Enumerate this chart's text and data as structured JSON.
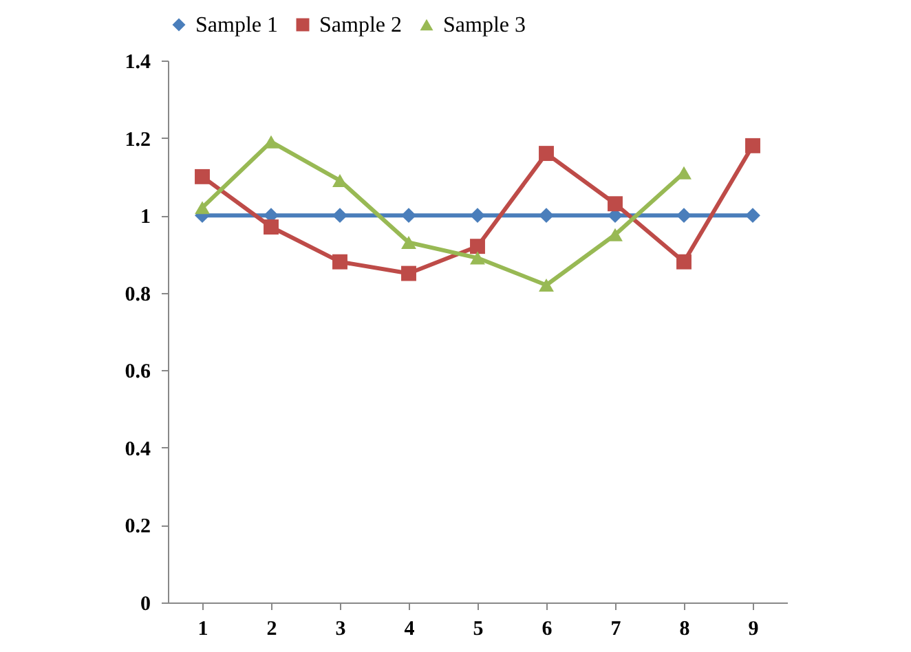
{
  "chart_data": {
    "type": "line",
    "categories": [
      "1",
      "2",
      "3",
      "4",
      "5",
      "6",
      "7",
      "8",
      "9"
    ],
    "series": [
      {
        "name": "Sample 1",
        "color": "#4a7ebb",
        "marker": "diamond",
        "values": [
          1,
          1,
          1,
          1,
          1,
          1,
          1,
          1,
          1
        ]
      },
      {
        "name": "Sample 2",
        "color": "#be4b48",
        "marker": "square",
        "values": [
          1.1,
          0.97,
          0.88,
          0.85,
          0.92,
          1.16,
          1.03,
          0.88,
          1.18
        ]
      },
      {
        "name": "Sample 3",
        "color": "#98b954",
        "marker": "triangle",
        "values": [
          1.02,
          1.19,
          1.09,
          0.93,
          0.89,
          0.82,
          0.95,
          1.11,
          null
        ]
      }
    ],
    "ylim": [
      0,
      1.4
    ],
    "yticks": [
      0,
      0.2,
      0.4,
      0.6,
      0.8,
      1,
      1.2,
      1.4
    ],
    "grid": false,
    "legend": "top",
    "line_style": "solid"
  }
}
